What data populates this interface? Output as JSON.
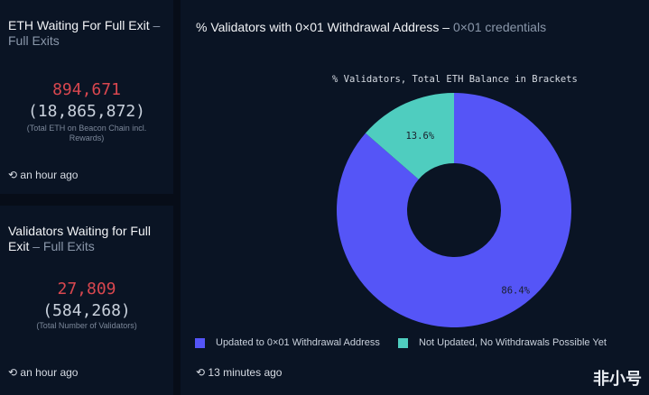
{
  "cards": [
    {
      "title": "ETH Waiting For Full Exit",
      "sub": "Full Exits",
      "value": "894,671",
      "total": "(18,865,872)",
      "note": "(Total ETH on Beacon Chain incl. Rewards)",
      "time": "an hour ago"
    },
    {
      "title": "Validators Waiting for Full Exit",
      "sub": "Full Exits",
      "value": "27,809",
      "total": "(584,268)",
      "note": "(Total Number of Validators)",
      "time": "an hour ago"
    }
  ],
  "panel": {
    "title": "% Validators with 0×01 Withdrawal Address",
    "sep": "–",
    "sub": "0×01 credentials",
    "time": "13 minutes ago"
  },
  "chart_data": {
    "type": "pie",
    "donut": true,
    "title": "% Validators, Total ETH Balance in Brackets",
    "categories": [
      "Updated to 0×01 Withdrawal Address",
      "Not Updated, No Withdrawals Possible Yet"
    ],
    "values": [
      86.4,
      13.6
    ],
    "labels": [
      "86.4%",
      "13.6%"
    ],
    "colors": [
      "#5555f7",
      "#4fcdbf"
    ],
    "legend": "bottom-left"
  },
  "watermark": "非小号"
}
